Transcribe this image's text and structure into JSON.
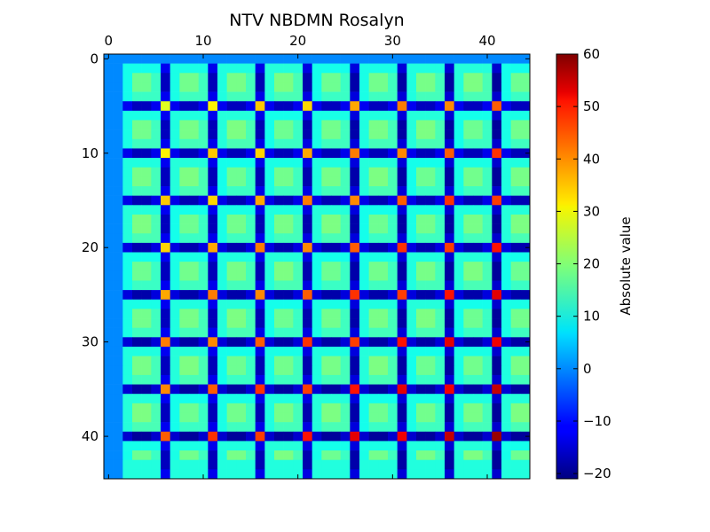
{
  "chart_data": {
    "type": "heatmap",
    "title": "NTV NBDMN Rosalyn",
    "size": 45,
    "x_ticks": [
      0,
      10,
      20,
      30,
      40
    ],
    "y_ticks": [
      0,
      10,
      20,
      30,
      40
    ],
    "x_axis_position": "top",
    "colormap": "jet",
    "colorbar": {
      "label": "Absolute value",
      "min": -21,
      "max": 60,
      "ticks": [
        -20,
        -10,
        0,
        10,
        20,
        30,
        40,
        50,
        60
      ]
    },
    "pattern": {
      "period": 5,
      "row_offset": 1,
      "col_offset": 2,
      "background_value": 0,
      "block_base": 14,
      "block_center_boost": 6,
      "block_amplitude_growth": 0.4,
      "dark_line_value": -16,
      "dark_line_growth": -0.1,
      "intersection_base": 27,
      "intersection_growth": 4.0,
      "edge_light_value": 10
    },
    "grid": false
  }
}
